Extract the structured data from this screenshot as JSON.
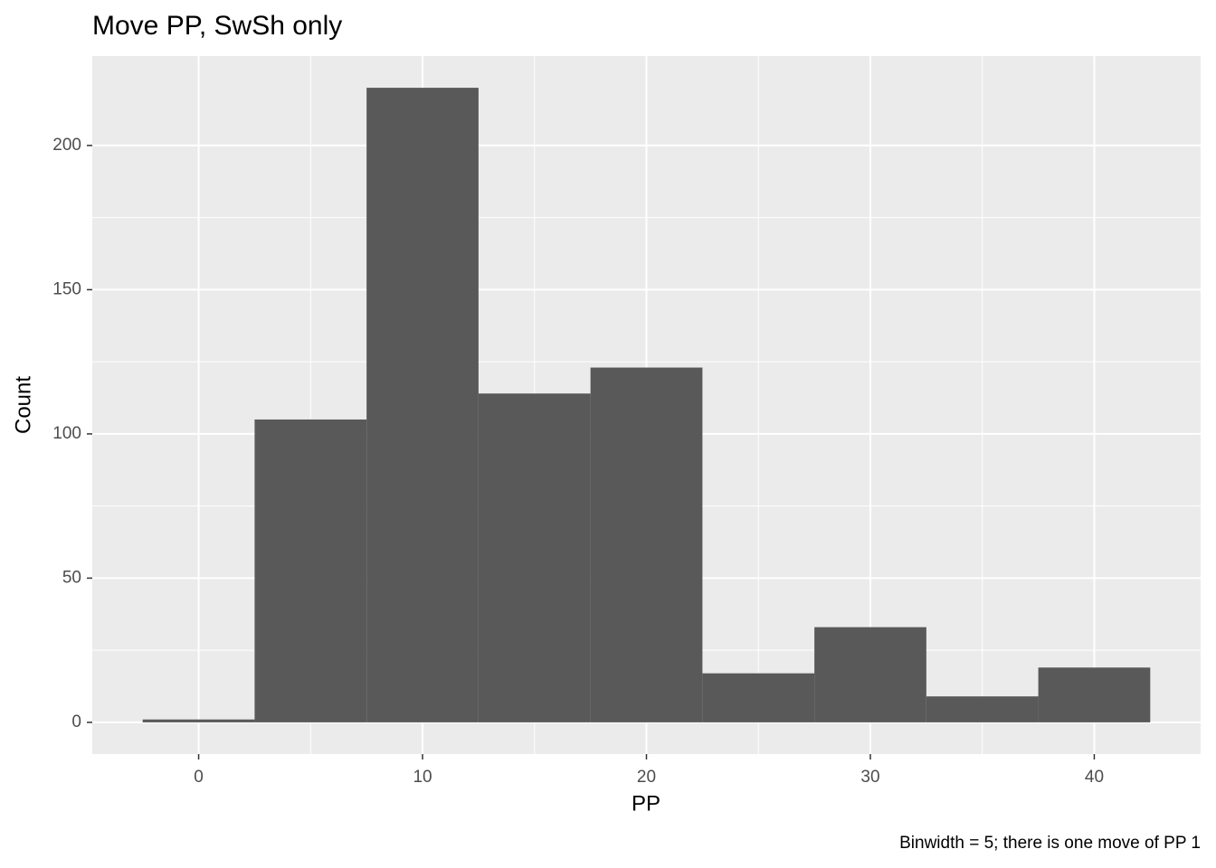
{
  "chart_data": {
    "type": "histogram",
    "title": "Move PP, SwSh only",
    "x_label": "PP",
    "y_label": "Count",
    "caption": "Binwidth = 5; there is one move of PP 1",
    "bins": [
      -2.5,
      2.5,
      7.5,
      12.5,
      17.5,
      22.5,
      27.5,
      32.5,
      37.5,
      42.5
    ],
    "values": [
      1,
      105,
      220,
      114,
      123,
      17,
      33,
      9,
      19
    ],
    "color": "#595959",
    "xlim": [
      -4.75,
      44.75
    ],
    "xticks": [
      0,
      10,
      20,
      30,
      40
    ],
    "ylim": [
      -11,
      231
    ],
    "yticks": [
      0,
      50,
      100,
      150,
      200
    ],
    "grid": true,
    "minor_grid": true
  }
}
